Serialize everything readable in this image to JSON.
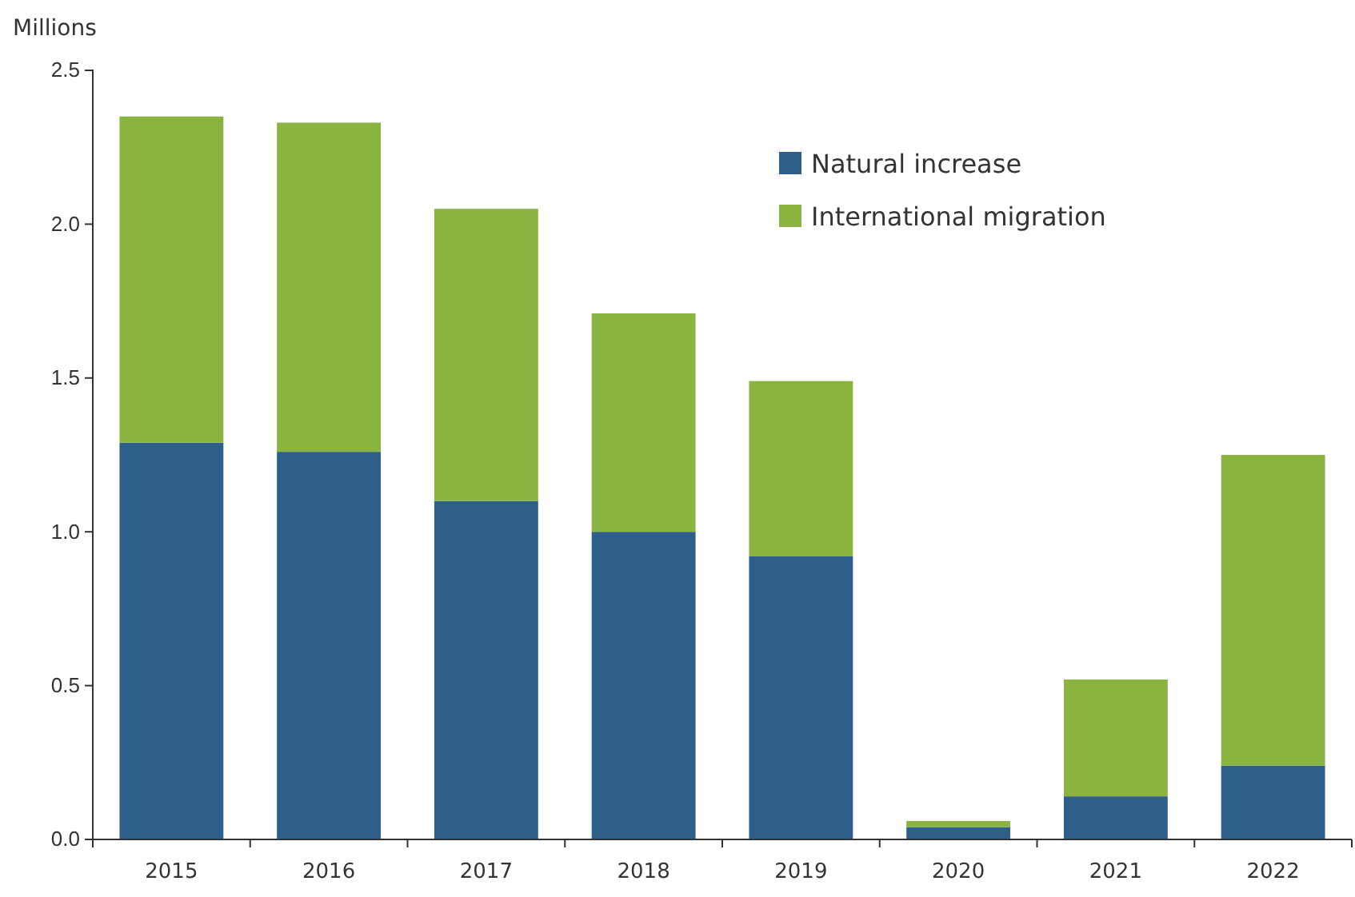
{
  "chart_data": {
    "type": "bar",
    "ylabel": "Millions",
    "categories": [
      "2015",
      "2016",
      "2017",
      "2018",
      "2019",
      "2020",
      "2021",
      "2022"
    ],
    "series": [
      {
        "name": "Natural increase",
        "color": "#2e5e8a",
        "values": [
          1.29,
          1.26,
          1.1,
          1.0,
          0.92,
          0.04,
          0.14,
          0.24
        ]
      },
      {
        "name": "International migration",
        "color": "#8ab33f",
        "values": [
          1.06,
          1.07,
          0.95,
          0.71,
          0.57,
          0.02,
          0.38,
          1.01
        ]
      }
    ],
    "stacked": true,
    "ylim": [
      0,
      2.5
    ],
    "yticks": [
      {
        "value": 0,
        "label": "0.0"
      },
      {
        "value": 0.5,
        "label": "0.5"
      },
      {
        "value": 1,
        "label": "1.0"
      },
      {
        "value": 1.5,
        "label": "1.5"
      },
      {
        "value": 2,
        "label": "2.0"
      },
      {
        "value": 2.5,
        "label": "2.5"
      }
    ],
    "grid": false,
    "legend": "top right"
  }
}
